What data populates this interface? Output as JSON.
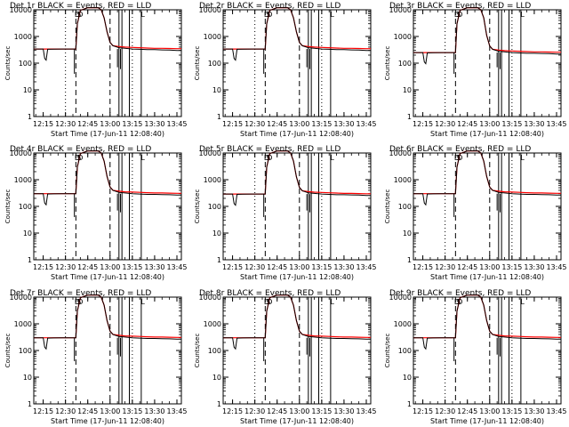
{
  "chart_data": {
    "type": "line",
    "layout": "3x3 grid",
    "yscale": "log",
    "ylim": [
      1,
      10000
    ],
    "xlim": [
      "12:08:40",
      "13:48:00"
    ],
    "y_ticks": [
      "1",
      "10",
      "100",
      "1000",
      "10000"
    ],
    "x_ticks": [
      "12:15",
      "12:30",
      "12:45",
      "13:00",
      "13:15",
      "13:30",
      "13:45"
    ],
    "ylabel": "Counts/sec",
    "xlabel": "Start Time (17-Jun-11 12:08:40)",
    "series_colors": {
      "events": "#000000",
      "lld": "#ff0000"
    },
    "event_markers": {
      "dotted": [
        "12:30",
        "13:15"
      ],
      "dashed": [
        "12:37",
        "13:00"
      ],
      "solid": [
        "13:06",
        "13:08",
        "13:13",
        "13:21"
      ],
      "letters": [
        {
          "text": "D",
          "at": "12:38"
        },
        {
          "text": "S",
          "at": "12:39"
        },
        {
          "text": "D",
          "at": "12:40"
        },
        {
          "text": "L",
          "at": "13:22"
        }
      ]
    },
    "profile": {
      "times": [
        "12:08:40",
        "12:15",
        "12:16",
        "12:17",
        "12:18",
        "12:22",
        "12:28",
        "12:35",
        "12:37",
        "12:38",
        "12:40",
        "12:45",
        "12:52",
        "12:54",
        "12:56",
        "12:58",
        "13:00",
        "13:02",
        "13:06",
        "13:10",
        "13:15",
        "13:20",
        "13:25",
        "13:30",
        "13:35",
        "13:40",
        "13:45",
        "13:48"
      ],
      "lld": [
        340,
        340,
        340,
        340,
        340,
        340,
        340,
        340,
        340,
        3000,
        9500,
        12000,
        12000,
        10000,
        5000,
        1500,
        600,
        450,
        420,
        400,
        390,
        380,
        370,
        360,
        360,
        355,
        350,
        350
      ],
      "events": [
        340,
        340,
        150,
        130,
        330,
        335,
        340,
        340,
        340,
        3000,
        9500,
        12000,
        12000,
        10000,
        5000,
        1500,
        600,
        450,
        380,
        360,
        340,
        330,
        320,
        320,
        315,
        310,
        300,
        300
      ]
    },
    "panels": [
      {
        "title": "Det 1r BLACK = Events, RED = LLD",
        "base": 340
      },
      {
        "title": "Det 2r BLACK = Events, RED = LLD",
        "base": 340
      },
      {
        "title": "Det 3r BLACK = Events, RED = LLD",
        "base": 250
      },
      {
        "title": "Det 4r BLACK = Events, RED = LLD",
        "base": 300
      },
      {
        "title": "Det 5r BLACK = Events, RED = LLD",
        "base": 290
      },
      {
        "title": "Det 6r BLACK = Events, RED = LLD",
        "base": 300
      },
      {
        "title": "Det 7r BLACK = Events, RED = LLD",
        "base": 300
      },
      {
        "title": "Det 8r BLACK = Events, RED = LLD",
        "base": 300
      },
      {
        "title": "Det 9r BLACK = Events, RED = LLD",
        "base": 300
      }
    ]
  }
}
